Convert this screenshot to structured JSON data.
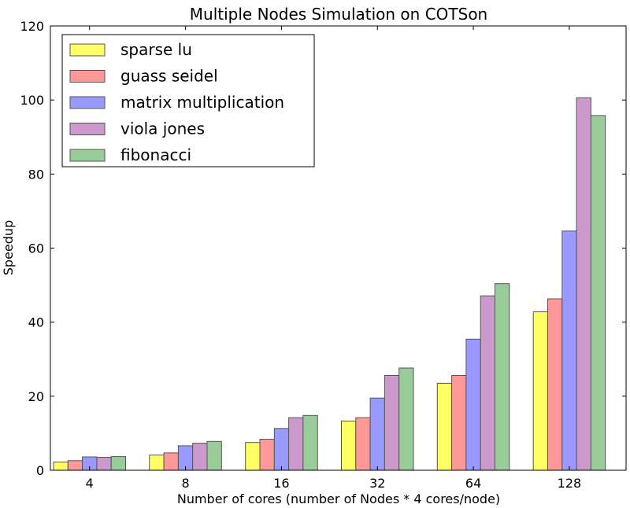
{
  "chart_data": {
    "type": "bar",
    "title": "Multiple Nodes Simulation on COTSon",
    "xlabel": "Number of cores (number of Nodes * 4 cores/node)",
    "ylabel": "Speedup",
    "categories": [
      "4",
      "8",
      "16",
      "32",
      "64",
      "128"
    ],
    "ylim": [
      0,
      120
    ],
    "yticks": [
      0,
      20,
      40,
      60,
      80,
      100,
      120
    ],
    "grid": false,
    "legend_position": "top-left",
    "series": [
      {
        "name": "sparse lu",
        "color": "#ffff66",
        "values": [
          2.2,
          4.1,
          7.5,
          13.3,
          23.5,
          42.8
        ]
      },
      {
        "name": "guass seidel",
        "color": "#ff9999",
        "values": [
          2.6,
          4.7,
          8.4,
          14.2,
          25.6,
          46.3
        ]
      },
      {
        "name": "matrix multiplication",
        "color": "#9999ff",
        "values": [
          3.6,
          6.6,
          11.3,
          19.5,
          35.4,
          64.6
        ]
      },
      {
        "name": "viola jones",
        "color": "#cc99cc",
        "values": [
          3.5,
          7.3,
          14.2,
          25.6,
          47.1,
          100.6
        ]
      },
      {
        "name": "fibonacci",
        "color": "#99cc99",
        "values": [
          3.7,
          7.8,
          14.8,
          27.6,
          50.4,
          95.8
        ]
      }
    ]
  }
}
